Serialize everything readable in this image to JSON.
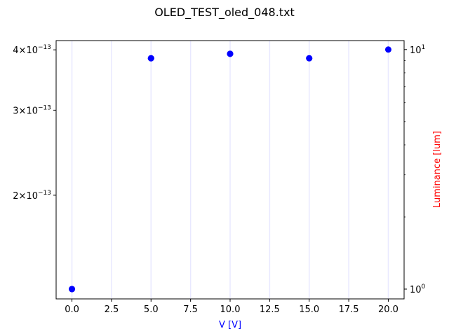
{
  "chart_data": {
    "type": "scatter",
    "title": "OLED_TEST_oled_048.txt",
    "xlabel": "V [V]",
    "ylabel_right": "Luminance [lum]",
    "x_ticks": [
      "0.0",
      "2.5",
      "5.0",
      "7.5",
      "10.0",
      "12.5",
      "15.0",
      "17.5",
      "20.0"
    ],
    "xlim": [
      -1.0,
      21.0
    ],
    "y_left": {
      "scale": "log",
      "ticks": [
        {
          "value": 4e-13,
          "mantissa": "4",
          "base": "10",
          "exponent": "−13"
        },
        {
          "value": 3e-13,
          "mantissa": "3",
          "base": "10",
          "exponent": "−13"
        },
        {
          "value": 2e-13,
          "mantissa": "2",
          "base": "10",
          "exponent": "−13"
        }
      ],
      "lim": [
        1.22e-13,
        4.18e-13
      ]
    },
    "y_right": {
      "scale": "log",
      "ticks": [
        {
          "value": 1,
          "base": "10",
          "exponent": "0"
        },
        {
          "value": 10,
          "base": "10",
          "exponent": "1"
        }
      ],
      "lim": [
        0.91,
        10.9
      ]
    },
    "grid": "vertical",
    "x": [
      0,
      0,
      0,
      5,
      5,
      5,
      10,
      10,
      10,
      15,
      15,
      20
    ],
    "y_right_values": [
      1.0,
      1.0,
      1.0,
      9.2,
      9.2,
      9.2,
      9.6,
      9.6,
      9.6,
      9.2,
      9.2,
      10.0
    ],
    "colors": {
      "points": "#0000ff",
      "xlabel": "#0000ff",
      "ylabel_right": "#ff0000",
      "grid": "#e8e8ff",
      "axes": "#000000"
    }
  }
}
